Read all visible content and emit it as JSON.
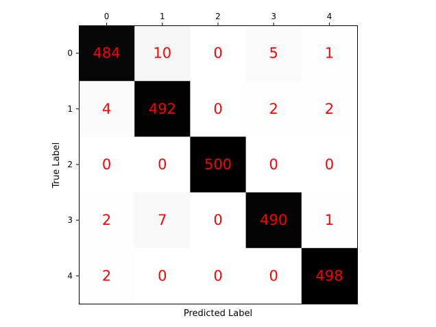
{
  "chart_data": {
    "type": "heatmap",
    "title": "",
    "xlabel": "Predicted Label",
    "ylabel": "True Label",
    "x_categories": [
      "0",
      "1",
      "2",
      "3",
      "4"
    ],
    "y_categories": [
      "0",
      "1",
      "2",
      "3",
      "4"
    ],
    "values": [
      [
        484,
        10,
        0,
        5,
        1
      ],
      [
        4,
        492,
        0,
        2,
        2
      ],
      [
        0,
        0,
        500,
        0,
        0
      ],
      [
        2,
        7,
        0,
        490,
        1
      ],
      [
        2,
        0,
        0,
        0,
        498
      ]
    ],
    "x_tick_position": "top",
    "colormap": "white-to-black",
    "value_range": [
      0,
      500
    ],
    "grid": false,
    "cell_text_color": "#ff0000"
  }
}
